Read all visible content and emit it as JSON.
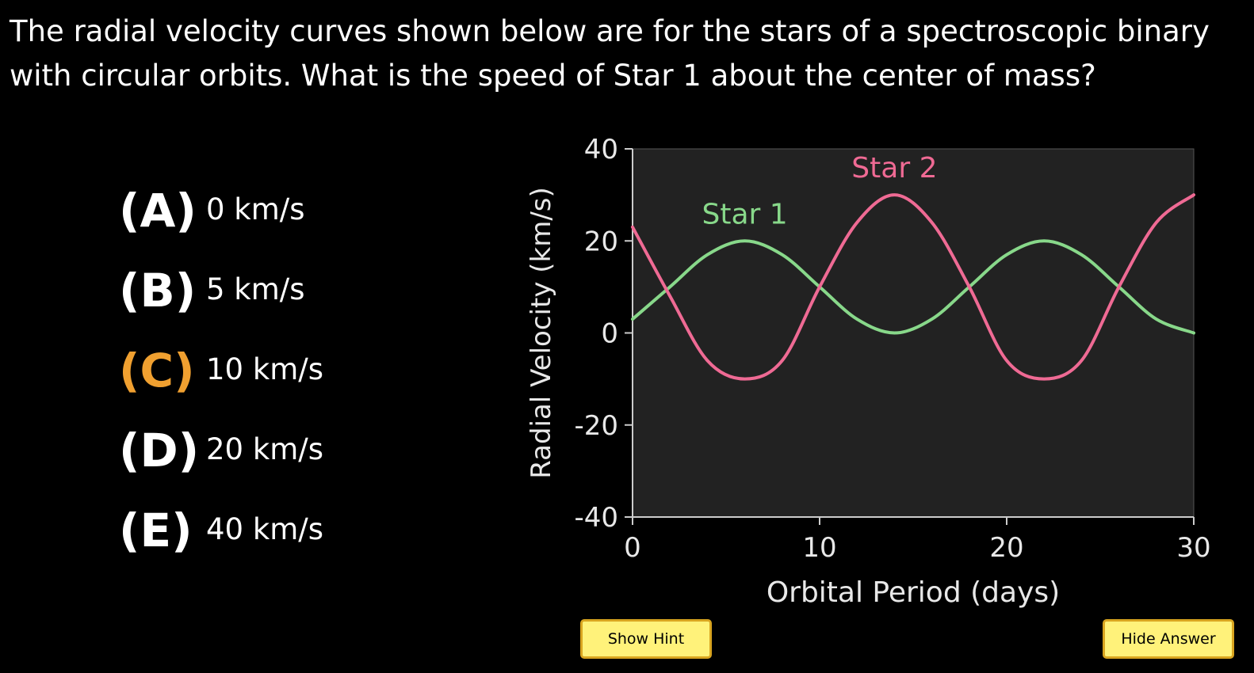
{
  "question": {
    "text": "The radial velocity curves shown below are for the stars of a spectroscopic binary with circular orbits. What is the speed of Star 1 about the center of mass?"
  },
  "choices": [
    {
      "letter": "(A)",
      "text": "0 km/s",
      "correct": false
    },
    {
      "letter": "(B)",
      "text": "5 km/s",
      "correct": false
    },
    {
      "letter": "(C)",
      "text": "10 km/s",
      "correct": true
    },
    {
      "letter": "(D)",
      "text": "20 km/s",
      "correct": false
    },
    {
      "letter": "(E)",
      "text": "40 km/s",
      "correct": false
    }
  ],
  "colors": {
    "highlight": "#f0a030",
    "star1": "#88d88a",
    "star2": "#ef6a94",
    "plot_bg": "#222222",
    "axis": "#cccccc"
  },
  "chart_data": {
    "type": "line",
    "xlabel": "Orbital Period (days)",
    "ylabel": "Radial Velocity (km/s)",
    "xlim": [
      0,
      30
    ],
    "ylim": [
      -40,
      40
    ],
    "xticks": [
      0,
      10,
      20,
      30
    ],
    "yticks": [
      40,
      20,
      0,
      -20,
      -40
    ],
    "grid": false,
    "series": [
      {
        "name": "Star 1",
        "color": "#88d88a",
        "x": [
          0,
          2,
          4,
          6,
          8,
          10,
          12,
          14,
          16,
          18,
          20,
          22,
          24,
          26,
          28,
          30
        ],
        "y": [
          3,
          10,
          17,
          20,
          17,
          10,
          3,
          0,
          3,
          10,
          17,
          20,
          17,
          10,
          3,
          0
        ]
      },
      {
        "name": "Star 2",
        "color": "#ef6a94",
        "x": [
          0,
          2,
          4,
          6,
          8,
          10,
          12,
          14,
          16,
          18,
          20,
          22,
          24,
          26,
          28,
          30
        ],
        "y": [
          23,
          8,
          -6,
          -10,
          -6,
          10,
          24,
          30,
          24,
          10,
          -6,
          -10,
          -6,
          10,
          24,
          30
        ]
      }
    ]
  },
  "buttons": {
    "hint": "Show Hint",
    "answer": "Hide Answer"
  }
}
